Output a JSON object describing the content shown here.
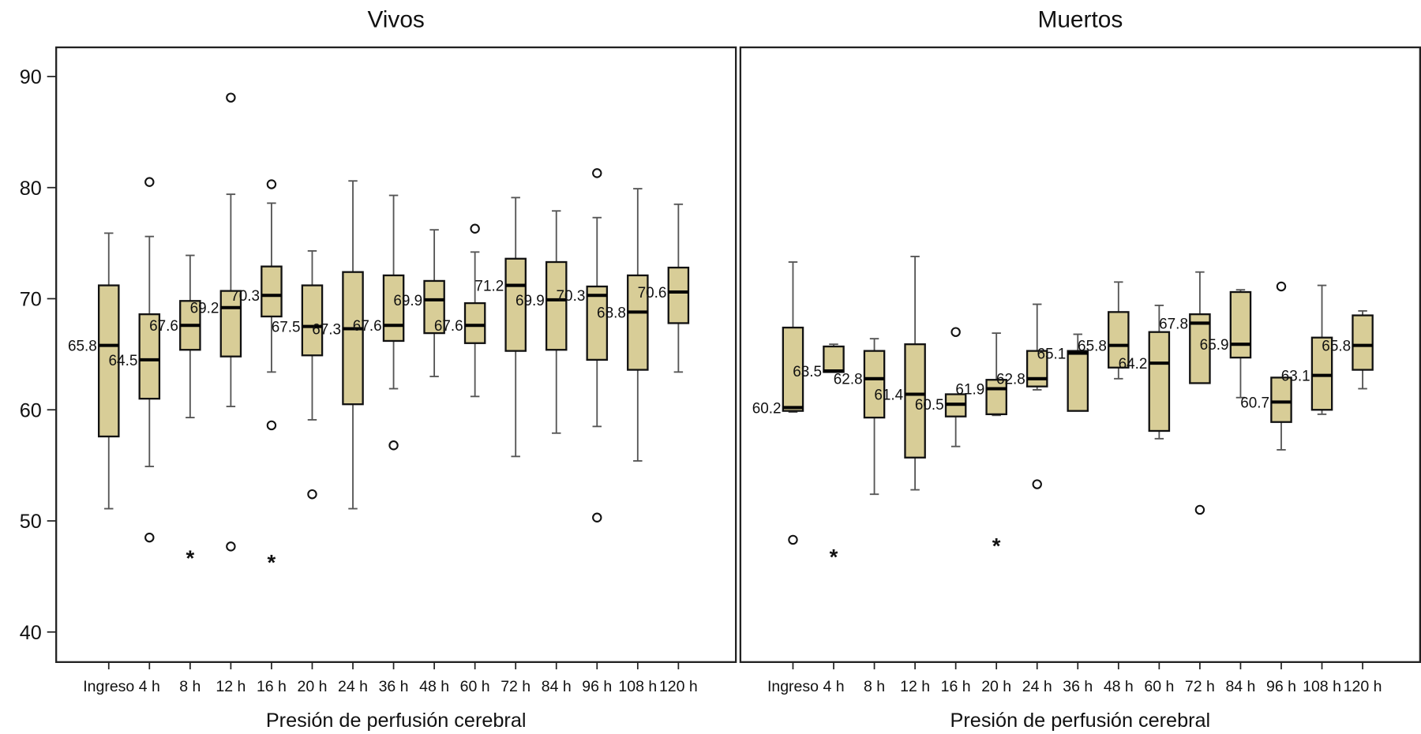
{
  "chart_data": {
    "type": "boxplot",
    "panels": [
      {
        "title": "Vivos",
        "xlabel": "Presión de perfusión cerebral",
        "ylabel": "",
        "ylim": [
          37,
          93
        ],
        "yticks": [
          40,
          50,
          60,
          70,
          80,
          90
        ],
        "categories": [
          "Ingreso",
          "4 h",
          "8 h",
          "12 h",
          "16 h",
          "20 h",
          "24 h",
          "36 h",
          "48 h",
          "60 h",
          "72 h",
          "84 h",
          "96 h",
          "108 h",
          "120 h"
        ],
        "boxes": [
          {
            "median": 65.8,
            "q1": 57.6,
            "q3": 71.2,
            "whisker_low": 51.1,
            "whisker_high": 75.9,
            "label": "65.8",
            "label_side": "left",
            "outliers": []
          },
          {
            "median": 64.5,
            "q1": 61.0,
            "q3": 68.6,
            "whisker_low": 54.9,
            "whisker_high": 75.6,
            "label": "64.5",
            "label_side": "left",
            "outliers": [
              {
                "value": 80.5,
                "symbol": "circle"
              },
              {
                "value": 48.5,
                "symbol": "circle"
              }
            ]
          },
          {
            "median": 67.6,
            "q1": 65.4,
            "q3": 69.8,
            "whisker_low": 59.3,
            "whisker_high": 73.9,
            "label": "67.6",
            "label_side": "left",
            "outliers": [
              {
                "value": 46.8,
                "symbol": "star"
              }
            ]
          },
          {
            "median": 69.2,
            "q1": 64.8,
            "q3": 70.7,
            "whisker_low": 60.3,
            "whisker_high": 79.4,
            "label": "69.2",
            "label_side": "left",
            "outliers": [
              {
                "value": 88.1,
                "symbol": "circle"
              },
              {
                "value": 47.7,
                "symbol": "circle"
              }
            ]
          },
          {
            "median": 70.3,
            "q1": 68.4,
            "q3": 72.9,
            "whisker_low": 63.4,
            "whisker_high": 78.6,
            "label": "70.3",
            "label_side": "left",
            "outliers": [
              {
                "value": 80.3,
                "symbol": "circle"
              },
              {
                "value": 58.6,
                "symbol": "circle"
              },
              {
                "value": 46.4,
                "symbol": "star"
              }
            ]
          },
          {
            "median": 67.5,
            "q1": 64.9,
            "q3": 71.2,
            "whisker_low": 59.1,
            "whisker_high": 74.3,
            "label": "67.5",
            "label_side": "left",
            "outliers": [
              {
                "value": 52.4,
                "symbol": "circle"
              }
            ]
          },
          {
            "median": 67.3,
            "q1": 60.5,
            "q3": 72.4,
            "whisker_low": 51.1,
            "whisker_high": 80.6,
            "label": "67.3",
            "label_side": "left",
            "outliers": []
          },
          {
            "median": 67.6,
            "q1": 66.2,
            "q3": 72.1,
            "whisker_low": 61.9,
            "whisker_high": 79.3,
            "label": "67.6",
            "label_side": "left",
            "outliers": [
              {
                "value": 56.8,
                "symbol": "circle"
              }
            ]
          },
          {
            "median": 69.9,
            "q1": 66.9,
            "q3": 71.6,
            "whisker_low": 63.0,
            "whisker_high": 76.2,
            "label": "69.9",
            "label_side": "left",
            "outliers": []
          },
          {
            "median": 67.6,
            "q1": 66.0,
            "q3": 69.6,
            "whisker_low": 61.2,
            "whisker_high": 74.2,
            "label": "67.6",
            "label_side": "left",
            "outliers": [
              {
                "value": 76.3,
                "symbol": "circle"
              }
            ]
          },
          {
            "median": 71.2,
            "q1": 65.3,
            "q3": 73.6,
            "whisker_low": 55.8,
            "whisker_high": 79.1,
            "label": "71.2",
            "label_side": "left",
            "outliers": []
          },
          {
            "median": 69.9,
            "q1": 65.4,
            "q3": 73.3,
            "whisker_low": 57.9,
            "whisker_high": 77.9,
            "label": "69.9",
            "label_side": "left",
            "outliers": []
          },
          {
            "median": 70.3,
            "q1": 64.5,
            "q3": 71.1,
            "whisker_low": 58.5,
            "whisker_high": 77.3,
            "label": "70.3",
            "label_side": "left",
            "outliers": [
              {
                "value": 81.3,
                "symbol": "circle"
              },
              {
                "value": 50.3,
                "symbol": "circle"
              }
            ]
          },
          {
            "median": 68.8,
            "q1": 63.6,
            "q3": 72.1,
            "whisker_low": 55.4,
            "whisker_high": 79.9,
            "label": "68.8",
            "label_side": "left",
            "outliers": []
          },
          {
            "median": 70.6,
            "q1": 67.8,
            "q3": 72.8,
            "whisker_low": 63.4,
            "whisker_high": 78.5,
            "label": "70.6",
            "label_side": "left",
            "outliers": []
          }
        ]
      },
      {
        "title": "Muertos",
        "xlabel": "Presión de perfusión cerebral",
        "ylabel": "",
        "ylim": [
          37,
          93
        ],
        "yticks": [
          40,
          50,
          60,
          70,
          80,
          90
        ],
        "categories": [
          "Ingreso",
          "4 h",
          "8 h",
          "12 h",
          "16 h",
          "20 h",
          "24 h",
          "36 h",
          "48 h",
          "60 h",
          "72 h",
          "84 h",
          "96 h",
          "108 h",
          "120 h"
        ],
        "boxes": [
          {
            "median": 60.2,
            "q1": 59.9,
            "q3": 67.4,
            "whisker_low": 59.8,
            "whisker_high": 73.3,
            "label": "60.2",
            "label_side": "left",
            "outliers": [
              {
                "value": 48.3,
                "symbol": "circle"
              }
            ]
          },
          {
            "median": 63.5,
            "q1": 63.4,
            "q3": 65.7,
            "whisker_low": 63.4,
            "whisker_high": 65.9,
            "label": "63.5",
            "label_side": "left",
            "outliers": [
              {
                "value": 46.9,
                "symbol": "star"
              }
            ]
          },
          {
            "median": 62.8,
            "q1": 59.3,
            "q3": 65.3,
            "whisker_low": 52.4,
            "whisker_high": 66.4,
            "label": "62.8",
            "label_side": "left",
            "outliers": []
          },
          {
            "median": 61.4,
            "q1": 55.7,
            "q3": 65.9,
            "whisker_low": 52.8,
            "whisker_high": 73.8,
            "label": "61.4",
            "label_side": "left",
            "outliers": []
          },
          {
            "median": 60.5,
            "q1": 59.4,
            "q3": 61.4,
            "whisker_low": 56.7,
            "whisker_high": null,
            "label": "60.5",
            "label_side": "left",
            "outliers": [
              {
                "value": 67.0,
                "symbol": "circle"
              }
            ]
          },
          {
            "median": 61.9,
            "q1": 59.6,
            "q3": 62.7,
            "whisker_low": 59.5,
            "whisker_high": 66.9,
            "label": "61.9",
            "label_side": "left",
            "outliers": [
              {
                "value": 47.9,
                "symbol": "star"
              }
            ]
          },
          {
            "median": 62.8,
            "q1": 62.1,
            "q3": 65.3,
            "whisker_low": 61.8,
            "whisker_high": 69.5,
            "label": "62.8",
            "label_side": "left",
            "outliers": [
              {
                "value": 53.3,
                "symbol": "circle"
              }
            ]
          },
          {
            "median": 65.1,
            "q1": 59.9,
            "q3": 65.3,
            "whisker_low": null,
            "whisker_high": 66.8,
            "label": "65.1",
            "label_side": "left",
            "outliers": []
          },
          {
            "median": 65.8,
            "q1": 63.8,
            "q3": 68.8,
            "whisker_low": 62.8,
            "whisker_high": 71.5,
            "label": "65.8",
            "label_side": "left",
            "outliers": []
          },
          {
            "median": 64.2,
            "q1": 58.1,
            "q3": 67.0,
            "whisker_low": 57.4,
            "whisker_high": 69.4,
            "label": "64.2",
            "label_side": "left",
            "outliers": []
          },
          {
            "median": 67.8,
            "q1": 62.4,
            "q3": 68.6,
            "whisker_low": null,
            "whisker_high": 72.4,
            "label": "67.8",
            "label_side": "left",
            "outliers": [
              {
                "value": 51.0,
                "symbol": "circle"
              }
            ]
          },
          {
            "median": 65.9,
            "q1": 64.7,
            "q3": 70.6,
            "whisker_low": 61.1,
            "whisker_high": 70.8,
            "label": "65.9",
            "label_side": "left",
            "outliers": []
          },
          {
            "median": 60.7,
            "q1": 58.9,
            "q3": 62.9,
            "whisker_low": 56.4,
            "whisker_high": null,
            "label": "60.7",
            "label_side": "left",
            "outliers": [
              {
                "value": 71.1,
                "symbol": "circle"
              }
            ]
          },
          {
            "median": 63.1,
            "q1": 60.0,
            "q3": 66.5,
            "whisker_low": 59.6,
            "whisker_high": 71.2,
            "label": "63.1",
            "label_side": "left",
            "outliers": []
          },
          {
            "median": 65.8,
            "q1": 63.6,
            "q3": 68.5,
            "whisker_low": 61.9,
            "whisker_high": 68.9,
            "label": "65.8",
            "label_side": "left",
            "outliers": []
          }
        ]
      }
    ]
  },
  "colors": {
    "box_fill": "#d8cd97",
    "box_stroke": "#111111",
    "whisker": "#555555",
    "median": "#000000",
    "text": "#111111"
  }
}
